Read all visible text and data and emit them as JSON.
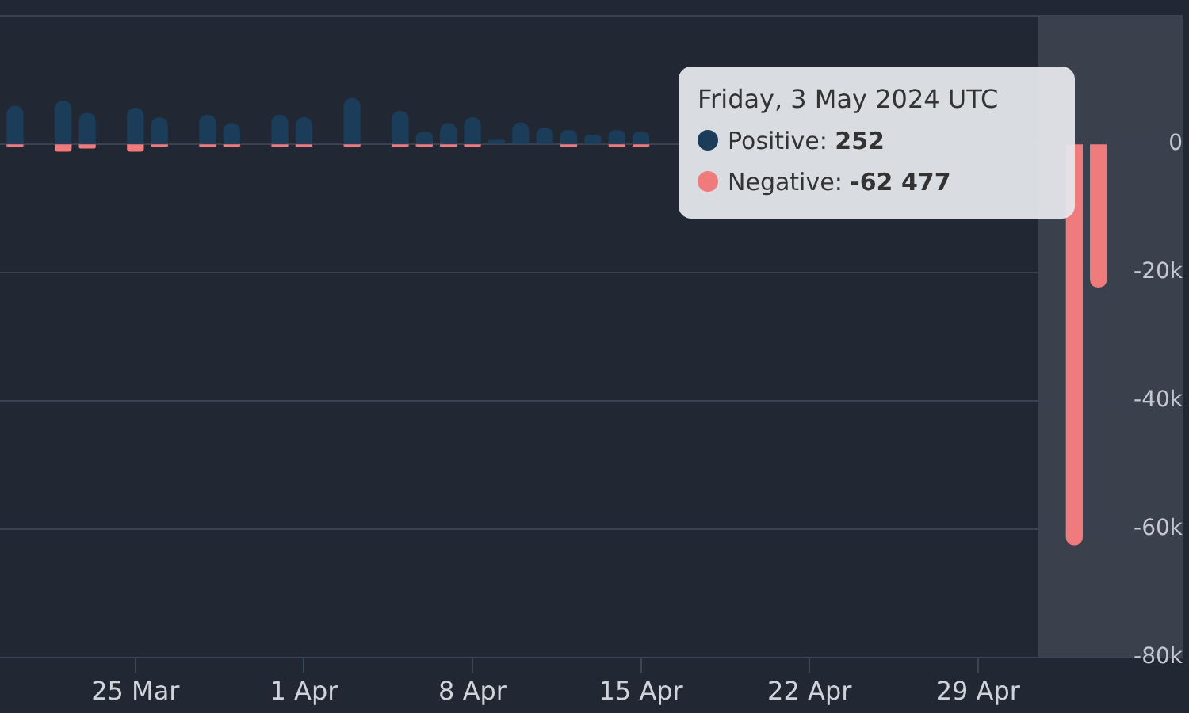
{
  "chart_data": {
    "type": "bar",
    "x": [
      "2024-03-20",
      "2024-03-22",
      "2024-03-23",
      "2024-03-25",
      "2024-03-26",
      "2024-03-28",
      "2024-03-29",
      "2024-03-31",
      "2024-04-01",
      "2024-04-03",
      "2024-04-05",
      "2024-04-06",
      "2024-04-07",
      "2024-04-08",
      "2024-04-09",
      "2024-04-10",
      "2024-04-11",
      "2024-04-12",
      "2024-04-13",
      "2024-04-14",
      "2024-04-15",
      "2024-04-16",
      "2024-04-29",
      "2024-04-30",
      "2024-05-01",
      "2024-05-02",
      "2024-05-03",
      "2024-05-04"
    ],
    "series": [
      {
        "color": "#1c3d5a",
        "values": [
          5900,
          6700,
          4800,
          5600,
          4100,
          4500,
          3200,
          4500,
          4100,
          7100,
          5100,
          1800,
          3200,
          4100,
          600,
          3300,
          2500,
          2100,
          1400,
          2100,
          1800,
          null,
          null,
          null,
          null,
          null,
          null,
          null
        ]
      },
      {
        "color": "#ef7b7d",
        "values": [
          -300,
          -1100,
          -600,
          -1100,
          -300,
          -300,
          -300,
          -300,
          -300,
          -300,
          -300,
          -300,
          -300,
          -300,
          null,
          null,
          null,
          -300,
          null,
          -300,
          -300,
          null,
          null,
          null,
          null,
          null,
          -62477,
          -22300
        ]
      }
    ],
    "xlim": [
      "2024-03-19T09:00",
      "2024-05-07T12:00"
    ],
    "xticks": [
      {
        "value": "2024-03-25",
        "label": "25 Mar"
      },
      {
        "value": "2024-04-01",
        "label": "1 Apr"
      },
      {
        "value": "2024-04-08",
        "label": "8 Apr"
      },
      {
        "value": "2024-04-15",
        "label": "15 Apr"
      },
      {
        "value": "2024-04-22",
        "label": "22 Apr"
      },
      {
        "value": "2024-04-29",
        "label": "29 Apr"
      }
    ],
    "ylim": [
      -80000,
      20000
    ],
    "yticks": [
      {
        "value": -80000,
        "label": "-80k"
      },
      {
        "value": -60000,
        "label": "-60k"
      },
      {
        "value": -40000,
        "label": "-40k"
      },
      {
        "value": -20000,
        "label": "-20k"
      },
      0,
      {
        "value": 20000,
        "label": null
      }
    ],
    "bands": [
      {
        "axis": "x",
        "from": "2024-05-01T12:00",
        "to": "2024-05-07T12:00",
        "color": "#3a414d"
      }
    ],
    "annotations": [
      "Friday, 3 May 2024 UTC",
      "Positive: 252",
      "Negative: -62 477"
    ],
    "grid": "y",
    "legend": false
  }
}
